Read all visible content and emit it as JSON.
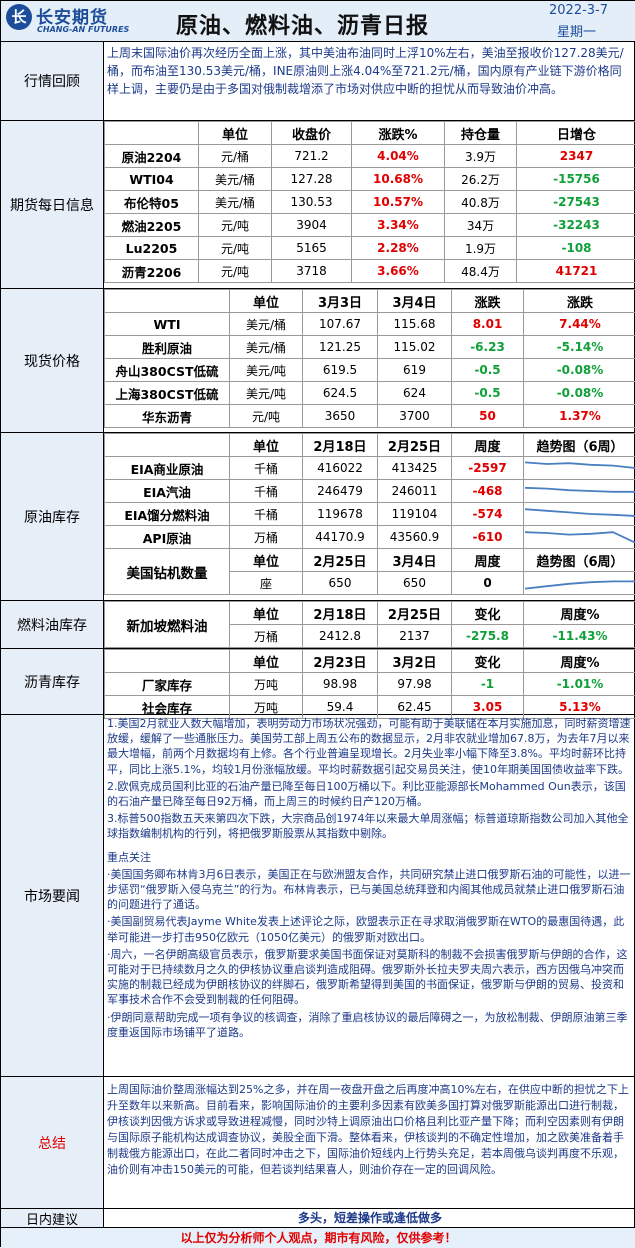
{
  "header": {
    "logo_text": "长安期货",
    "logo_en": "CHANG-AN FUTURES",
    "title": "原油、燃料油、沥青日报",
    "date": "2022-3-7",
    "weekday": "星期一"
  },
  "market_review": {
    "label": "行情回顾",
    "text": "上周末国际油价再次经历全面上涨，其中美油布油同时上浮10%左右，美油至报收价127.28美元/桶，而布油至130.53美元/桶，INE原油则上涨4.04%至721.2元/桶，国内原有产业链下游价格同样上调，主要仍是由于多国对俄制裁增添了市场对供应中断的担忧从而导致油价冲高。"
  },
  "futures": {
    "label": "期货每日信息",
    "headers": [
      "",
      "单位",
      "收盘价",
      "涨跌%",
      "持仓量",
      "日增仓"
    ],
    "rows": [
      {
        "name": "原油2204",
        "unit": "元/桶",
        "close": "721.2",
        "chg": "4.04%",
        "oi": "3.9万",
        "doi": "2347",
        "doi_dir": "up"
      },
      {
        "name": "WTI04",
        "unit": "美元/桶",
        "close": "127.28",
        "chg": "10.68%",
        "oi": "26.2万",
        "doi": "-15756",
        "doi_dir": "down"
      },
      {
        "name": "布伦特05",
        "unit": "美元/桶",
        "close": "130.53",
        "chg": "10.57%",
        "oi": "40.8万",
        "doi": "-27543",
        "doi_dir": "down"
      },
      {
        "name": "燃油2205",
        "unit": "元/吨",
        "close": "3904",
        "chg": "3.34%",
        "oi": "34万",
        "doi": "-32243",
        "doi_dir": "down"
      },
      {
        "name": "Lu2205",
        "unit": "元/吨",
        "close": "5165",
        "chg": "2.28%",
        "oi": "1.9万",
        "doi": "-108",
        "doi_dir": "down"
      },
      {
        "name": "沥青2206",
        "unit": "元/吨",
        "close": "3718",
        "chg": "3.66%",
        "oi": "48.4万",
        "doi": "41721",
        "doi_dir": "up"
      }
    ]
  },
  "spot": {
    "label": "现货价格",
    "headers": [
      "",
      "单位",
      "3月3日",
      "3月4日",
      "涨跌",
      "涨跌"
    ],
    "rows": [
      {
        "name": "WTI",
        "unit": "美元/桶",
        "d1": "107.67",
        "d2": "115.68",
        "chg": "8.01",
        "pct": "7.44%",
        "dir": "up"
      },
      {
        "name": "胜利原油",
        "unit": "美元/桶",
        "d1": "121.25",
        "d2": "115.02",
        "chg": "-6.23",
        "pct": "-5.14%",
        "dir": "down"
      },
      {
        "name": "舟山380CST低硫",
        "unit": "美元/吨",
        "d1": "619.5",
        "d2": "619",
        "chg": "-0.5",
        "pct": "-0.08%",
        "dir": "down"
      },
      {
        "name": "上海380CST低硫",
        "unit": "美元/吨",
        "d1": "624.5",
        "d2": "624",
        "chg": "-0.5",
        "pct": "-0.08%",
        "dir": "down"
      },
      {
        "name": "华东沥青",
        "unit": "元/吨",
        "d1": "3650",
        "d2": "3700",
        "chg": "50",
        "pct": "1.37%",
        "dir": "up"
      }
    ]
  },
  "crude_inv": {
    "label": "原油库存",
    "headers": [
      "",
      "单位",
      "2月18日",
      "2月25日",
      "周度",
      "趋势图（6周）"
    ],
    "rows": [
      {
        "name": "EIA商业原油",
        "unit": "千桶",
        "d1": "416022",
        "d2": "413425",
        "chg": "-2597",
        "trend": [
          0.15,
          0.25,
          0.2,
          0.3,
          0.35,
          0.5
        ]
      },
      {
        "name": "EIA汽油",
        "unit": "千桶",
        "d1": "246479",
        "d2": "246011",
        "chg": "-468",
        "trend": [
          0.3,
          0.35,
          0.45,
          0.5,
          0.55,
          0.55
        ]
      },
      {
        "name": "EIA馏分燃料油",
        "unit": "千桶",
        "d1": "119678",
        "d2": "119104",
        "chg": "-574",
        "trend": [
          0.2,
          0.3,
          0.4,
          0.5,
          0.55,
          0.62
        ]
      },
      {
        "name": "API原油",
        "unit": "万桶",
        "d1": "44170.9",
        "d2": "43560.9",
        "chg": "-610",
        "trend": [
          0.2,
          0.25,
          0.35,
          0.3,
          0.2,
          0.85
        ]
      }
    ],
    "rig_headers": [
      "单位",
      "2月25日",
      "3月4日",
      "周度",
      "趋势图（6周）"
    ],
    "rig": {
      "name": "美国钻机数量",
      "unit": "座",
      "d1": "650",
      "d2": "650",
      "chg": "0",
      "trend": [
        0.85,
        0.7,
        0.55,
        0.45,
        0.4,
        0.4
      ]
    }
  },
  "fuel_inv": {
    "label": "燃料油库存",
    "name": "新加坡燃料油",
    "headers": [
      "单位",
      "2月18日",
      "2月25日",
      "变化",
      "周度%"
    ],
    "unit": "万桶",
    "d1": "2412.8",
    "d2": "2137",
    "chg": "-275.8",
    "pct": "-11.43%"
  },
  "bitumen_inv": {
    "label": "沥青库存",
    "headers": [
      "",
      "单位",
      "2月23日",
      "3月2日",
      "变化",
      "周度%"
    ],
    "rows": [
      {
        "name": "厂家库存",
        "unit": "万吨",
        "d1": "98.98",
        "d2": "97.98",
        "chg": "-1",
        "pct": "-1.01%",
        "dir": "down"
      },
      {
        "name": "社会库存",
        "unit": "万吨",
        "d1": "59.4",
        "d2": "62.45",
        "chg": "3.05",
        "pct": "5.13%",
        "dir": "up"
      }
    ]
  },
  "news": {
    "label": "市场要闻",
    "p1": "1.美国2月就业人数大幅增加，表明劳动力市场状况强劲，可能有助于美联储在本月实施加息，同时薪资增速放缓，缓解了一些通胀压力。美国劳工部上周五公布的数据显示，2月非农就业增加67.8万，为去年7月以来最大增幅，前两个月数据均有上修。各个行业普遍呈现增长。2月失业率小幅下降至3.8%。平均时薪环比持平，同比上涨5.1%，均较1月份涨幅放缓。平均时薪数据引起交易员关注，使10年期美国国债收益率下跌。",
    "p2": "2.欧佩克成员国利比亚的石油产量已降至每日100万桶以下。利比亚能源部长Mohammed Oun表示，该国的石油产量已降至每日92万桶，而上周三的时候约日产120万桶。",
    "p3": "3.标普500指数五天来第四次下跌，大宗商品创1974年以来最大单周涨幅；标普道琼斯指数公司加入其他全球指数编制机构的行列，将把俄罗斯股票从其指数中剔除。",
    "focus_title": "重点关注",
    "f1": "·美国国务卿布林肯3月6日表示，美国正在与欧洲盟友合作，共同研究禁止进口俄罗斯石油的可能性，以进一步惩罚“俄罗斯入侵乌克兰”的行为。布林肯表示，已与美国总统拜登和内阁其他成员就禁止进口俄罗斯石油的问题进行了通话。",
    "f2": "·美国副贸易代表Jayme White发表上述评论之际，欧盟表示正在寻求取消俄罗斯在WTO的最惠国待遇，此举可能进一步打击950亿欧元（1050亿美元）的俄罗斯对欧出口。",
    "f3": "·周六，一名伊朗高级官员表示，俄罗斯要求美国书面保证对莫斯科的制裁不会损害俄罗斯与伊朗的合作，这可能对于已持续数月之久的伊核协议重启谈判造成阻碍。俄罗斯外长拉夫罗夫周六表示，西方因俄乌冲突而实施的制裁已经成为伊朗核协议的绊脚石，俄罗斯希望得到美国的书面保证，俄罗斯与伊朗的贸易、投资和军事技术合作不会受到制裁的任何阻碍。",
    "f4": "·伊朗同意帮助完成一项有争议的核调查，消除了重启核协议的最后障碍之一，为放松制裁、伊朗原油第三季度重返国际市场铺平了道路。"
  },
  "summary": {
    "label": "总结",
    "text": "上周国际油价整周涨幅达到25%之多，并在周一夜盘开盘之后再度冲高10%左右，在供应中断的担忧之下上升至数年以来新高。目前看来，影响国际油价的主要利多因素有欧美多国打算对俄罗斯能源出口进行制裁，伊核谈判因俄方诉求或导致进程减慢，同时沙特上调原油出口价格且利比亚产量下降；而利空因素则有伊朗与国际原子能机构达成调查协议，美股全面下滑。整体看来，伊核谈判的不确定性增加，加之欧美准备着手制裁俄方能源出口，在此二者同时冲击之下，国际油价短线内上行势头充足，若本周俄乌谈判再度不乐观，油价则有冲击150美元的可能，但若谈判结果喜人，则油价存在一定的回调风险。"
  },
  "advice": {
    "label": "日内建议",
    "text": "多头，短差操作或逢低做多"
  },
  "disclaimer": "以上仅为分析师个人观点，期市有风险，仅供参考！",
  "colors": {
    "up": "#e00000",
    "down": "#10a03a",
    "text_blue": "#1d3a8a",
    "label_bg": "#e6eef8",
    "brand": "#1d4d9a"
  }
}
